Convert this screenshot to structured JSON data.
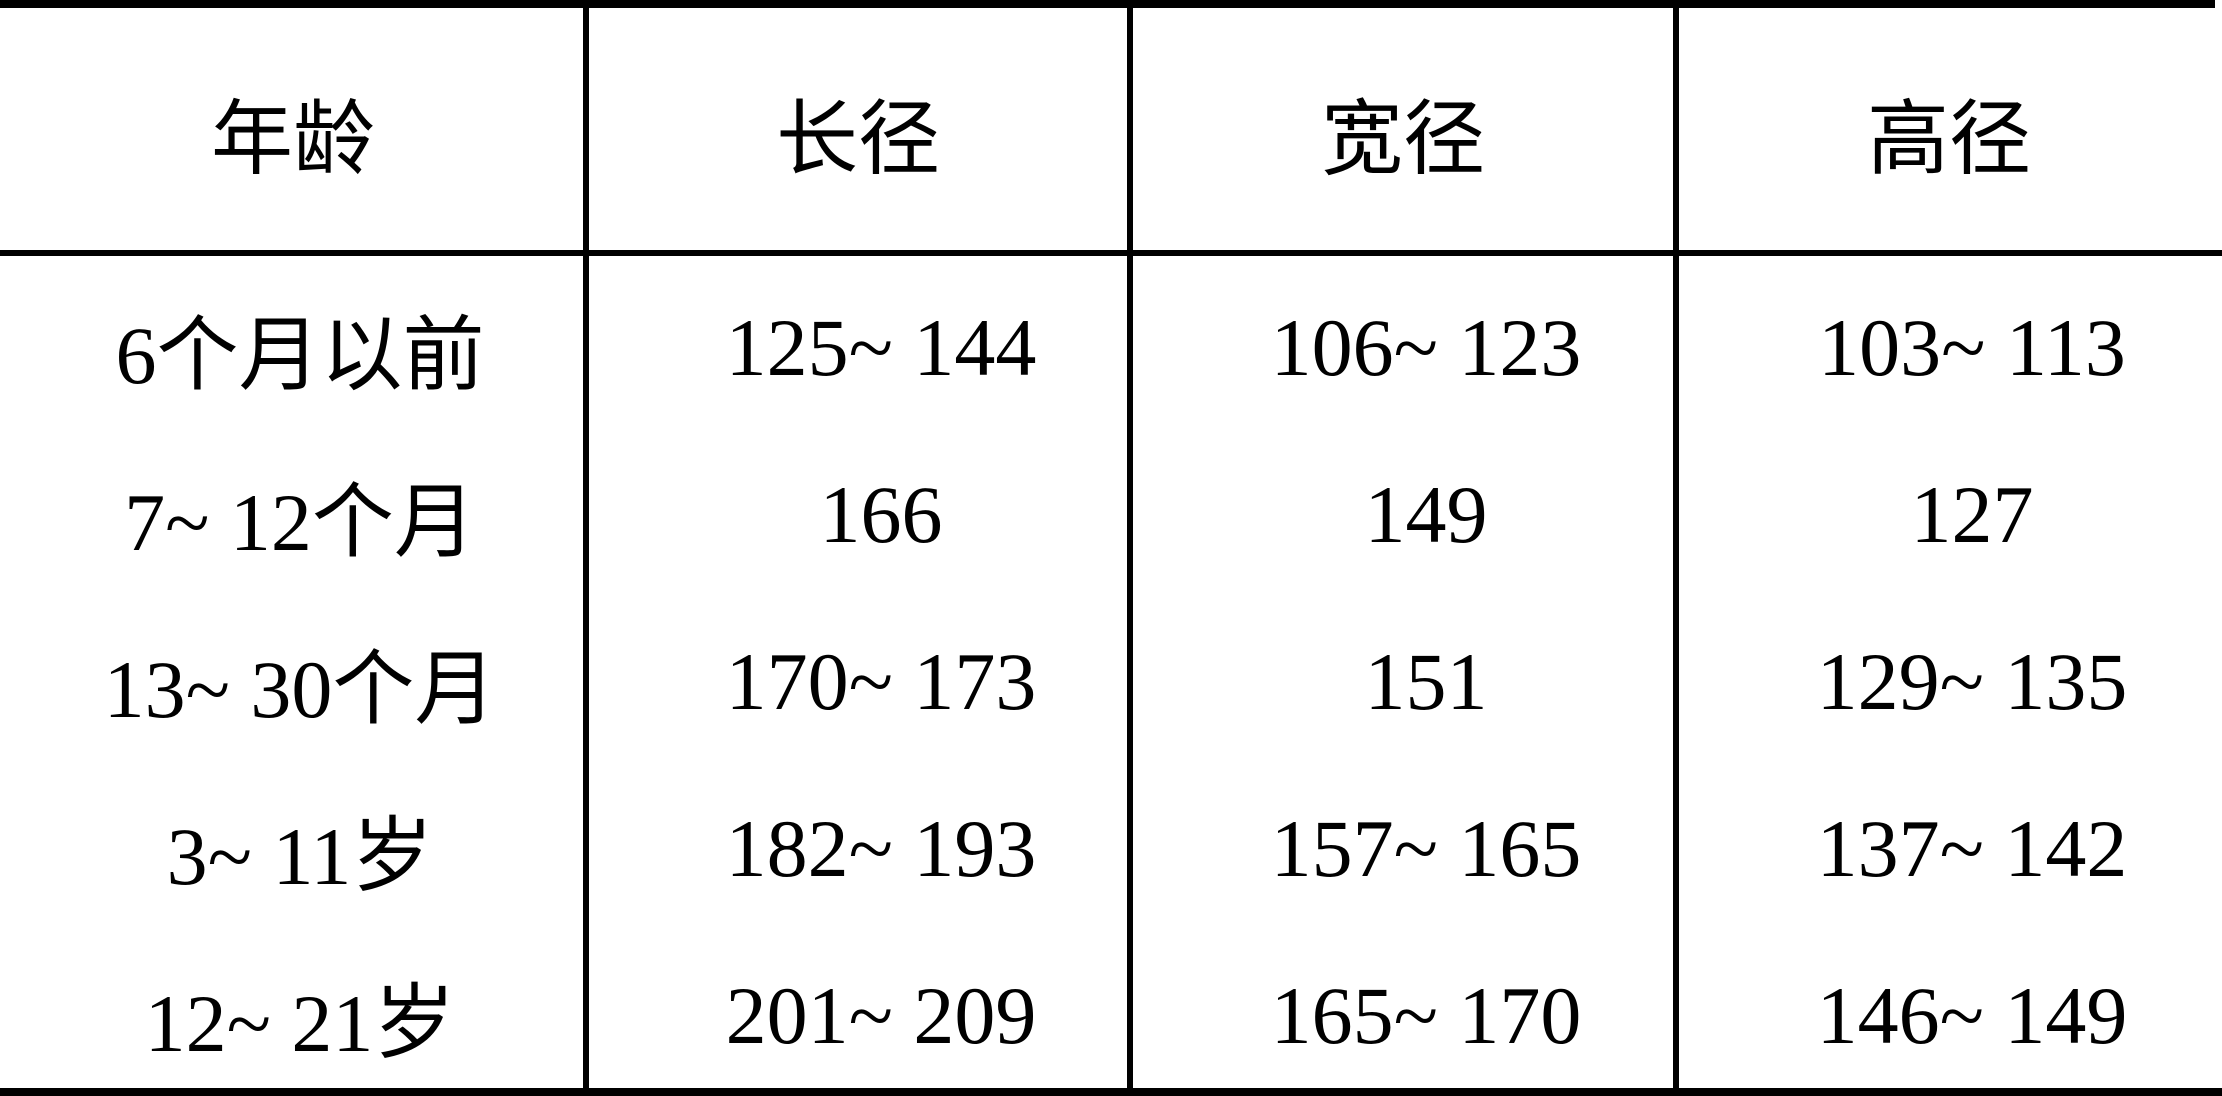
{
  "table": {
    "headers": [
      "年龄",
      "长径",
      "宽径",
      "高径"
    ],
    "rows": [
      {
        "age": "6个月以前",
        "long": "125~ 144",
        "wide": "106~ 123",
        "high": "103~ 113"
      },
      {
        "age": "7~ 12个月",
        "long": "166",
        "wide": "149",
        "high": "127"
      },
      {
        "age": "13~ 30个月",
        "long": "170~ 173",
        "wide": "151",
        "high": "129~ 135"
      },
      {
        "age": "3~ 11岁",
        "long": "182~ 193",
        "wide": "157~ 165",
        "high": "137~ 142"
      },
      {
        "age": "12~ 21岁",
        "long": "201~ 209",
        "wide": "165~ 170",
        "high": "146~ 149"
      }
    ]
  },
  "colors": {
    "background": "#ffffff",
    "text": "#000000",
    "rule": "#000000"
  }
}
